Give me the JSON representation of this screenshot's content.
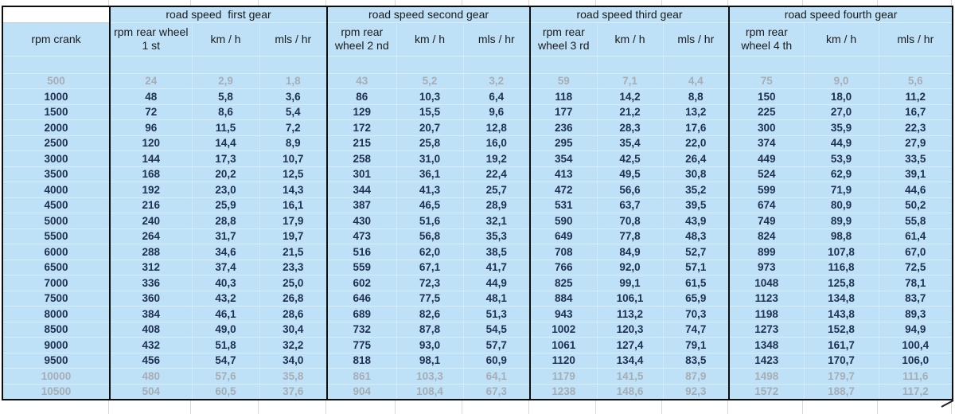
{
  "colors": {
    "cell_blue": "#bee1f8",
    "data_text": "#1e2f4f",
    "muted_text": "#a6adb4",
    "group_border": "#0d0d0d",
    "faint_grid": "#d2e9fa"
  },
  "table": {
    "corner_label": "",
    "rpm_header": "rpm crank",
    "groups": [
      {
        "title": "road speed  first gear",
        "cols": [
          "rpm rear wheel 1 st",
          "km / h",
          "mls / hr"
        ]
      },
      {
        "title": "road speed second gear",
        "cols": [
          "rpm rear wheel 2 nd",
          "km / h",
          "mls / hr"
        ]
      },
      {
        "title": "road speed third gear",
        "cols": [
          "rpm rear wheel 3 rd",
          "km / h",
          "mls / hr"
        ]
      },
      {
        "title": "road speed fourth gear",
        "cols": [
          "rpm rear wheel 4 th",
          "km / h",
          "mls / hr"
        ]
      }
    ],
    "rows": [
      {
        "rpm": "500",
        "muted": true,
        "cells": [
          "24",
          "2,9",
          "1,8",
          "43",
          "5,2",
          "3,2",
          "59",
          "7,1",
          "4,4",
          "75",
          "9,0",
          "5,6"
        ]
      },
      {
        "rpm": "1000",
        "muted": false,
        "cells": [
          "48",
          "5,8",
          "3,6",
          "86",
          "10,3",
          "6,4",
          "118",
          "14,2",
          "8,8",
          "150",
          "18,0",
          "11,2"
        ]
      },
      {
        "rpm": "1500",
        "muted": false,
        "cells": [
          "72",
          "8,6",
          "5,4",
          "129",
          "15,5",
          "9,6",
          "177",
          "21,2",
          "13,2",
          "225",
          "27,0",
          "16,7"
        ]
      },
      {
        "rpm": "2000",
        "muted": false,
        "cells": [
          "96",
          "11,5",
          "7,2",
          "172",
          "20,7",
          "12,8",
          "236",
          "28,3",
          "17,6",
          "300",
          "35,9",
          "22,3"
        ]
      },
      {
        "rpm": "2500",
        "muted": false,
        "cells": [
          "120",
          "14,4",
          "8,9",
          "215",
          "25,8",
          "16,0",
          "295",
          "35,4",
          "22,0",
          "374",
          "44,9",
          "27,9"
        ]
      },
      {
        "rpm": "3000",
        "muted": false,
        "cells": [
          "144",
          "17,3",
          "10,7",
          "258",
          "31,0",
          "19,2",
          "354",
          "42,5",
          "26,4",
          "449",
          "53,9",
          "33,5"
        ]
      },
      {
        "rpm": "3500",
        "muted": false,
        "cells": [
          "168",
          "20,2",
          "12,5",
          "301",
          "36,1",
          "22,4",
          "413",
          "49,5",
          "30,8",
          "524",
          "62,9",
          "39,1"
        ]
      },
      {
        "rpm": "4000",
        "muted": false,
        "cells": [
          "192",
          "23,0",
          "14,3",
          "344",
          "41,3",
          "25,7",
          "472",
          "56,6",
          "35,2",
          "599",
          "71,9",
          "44,6"
        ]
      },
      {
        "rpm": "4500",
        "muted": false,
        "cells": [
          "216",
          "25,9",
          "16,1",
          "387",
          "46,5",
          "28,9",
          "531",
          "63,7",
          "39,5",
          "674",
          "80,9",
          "50,2"
        ]
      },
      {
        "rpm": "5000",
        "muted": false,
        "cells": [
          "240",
          "28,8",
          "17,9",
          "430",
          "51,6",
          "32,1",
          "590",
          "70,8",
          "43,9",
          "749",
          "89,9",
          "55,8"
        ]
      },
      {
        "rpm": "5500",
        "muted": false,
        "cells": [
          "264",
          "31,7",
          "19,7",
          "473",
          "56,8",
          "35,3",
          "649",
          "77,8",
          "48,3",
          "824",
          "98,8",
          "61,4"
        ]
      },
      {
        "rpm": "6000",
        "muted": false,
        "cells": [
          "288",
          "34,6",
          "21,5",
          "516",
          "62,0",
          "38,5",
          "708",
          "84,9",
          "52,7",
          "899",
          "107,8",
          "67,0"
        ]
      },
      {
        "rpm": "6500",
        "muted": false,
        "cells": [
          "312",
          "37,4",
          "23,3",
          "559",
          "67,1",
          "41,7",
          "766",
          "92,0",
          "57,1",
          "973",
          "116,8",
          "72,5"
        ]
      },
      {
        "rpm": "7000",
        "muted": false,
        "cells": [
          "336",
          "40,3",
          "25,0",
          "602",
          "72,3",
          "44,9",
          "825",
          "99,1",
          "61,5",
          "1048",
          "125,8",
          "78,1"
        ]
      },
      {
        "rpm": "7500",
        "muted": false,
        "cells": [
          "360",
          "43,2",
          "26,8",
          "646",
          "77,5",
          "48,1",
          "884",
          "106,1",
          "65,9",
          "1123",
          "134,8",
          "83,7"
        ]
      },
      {
        "rpm": "8000",
        "muted": false,
        "cells": [
          "384",
          "46,1",
          "28,6",
          "689",
          "82,6",
          "51,3",
          "943",
          "113,2",
          "70,3",
          "1198",
          "143,8",
          "89,3"
        ]
      },
      {
        "rpm": "8500",
        "muted": false,
        "cells": [
          "408",
          "49,0",
          "30,4",
          "732",
          "87,8",
          "54,5",
          "1002",
          "120,3",
          "74,7",
          "1273",
          "152,8",
          "94,9"
        ]
      },
      {
        "rpm": "9000",
        "muted": false,
        "cells": [
          "432",
          "51,8",
          "32,2",
          "775",
          "93,0",
          "57,7",
          "1061",
          "127,4",
          "79,1",
          "1348",
          "161,7",
          "100,4"
        ]
      },
      {
        "rpm": "9500",
        "muted": false,
        "cells": [
          "456",
          "54,7",
          "34,0",
          "818",
          "98,1",
          "60,9",
          "1120",
          "134,4",
          "83,5",
          "1423",
          "170,7",
          "106,0"
        ]
      },
      {
        "rpm": "10000",
        "muted": true,
        "cells": [
          "480",
          "57,6",
          "35,8",
          "861",
          "103,3",
          "64,1",
          "1179",
          "141,5",
          "87,9",
          "1498",
          "179,7",
          "111,6"
        ]
      },
      {
        "rpm": "10500",
        "muted": true,
        "cells": [
          "504",
          "60,5",
          "37,6",
          "904",
          "108,4",
          "67,3",
          "1238",
          "148,6",
          "92,3",
          "1572",
          "188,7",
          "117,2"
        ]
      }
    ]
  }
}
